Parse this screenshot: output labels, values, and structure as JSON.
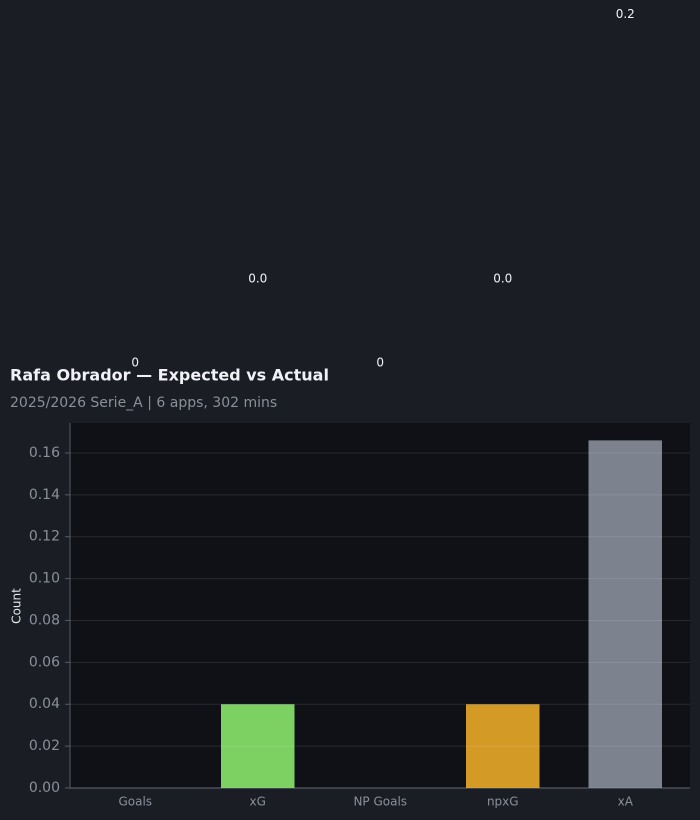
{
  "chart_data": {
    "type": "bar",
    "title": "Rafa Obrador — Expected vs Actual",
    "subtitle": "2025/2026 Serie_A | 6 apps, 302 mins",
    "y_label": "Count",
    "categories": [
      "Goals",
      "xG",
      "NP Goals",
      "npxG",
      "xA"
    ],
    "values": [
      0,
      0.04,
      0,
      0.04,
      0.166
    ],
    "value_labels": [
      "0",
      "0.0",
      "0",
      "0.0",
      "0.2"
    ],
    "colors": [
      "#5b8def",
      "#7dd163",
      "#e05555",
      "#d49a26",
      "#7c838e"
    ],
    "ylim": [
      0,
      0.1743
    ],
    "yticks": [
      {
        "value": 0,
        "label": "0.00"
      },
      {
        "value": 0.02,
        "label": "0.02"
      },
      {
        "value": 0.04,
        "label": "0.04"
      },
      {
        "value": 0.06,
        "label": "0.06"
      },
      {
        "value": 0.08,
        "label": "0.08"
      },
      {
        "value": 0.1,
        "label": "0.10"
      },
      {
        "value": 0.12,
        "label": "0.12"
      },
      {
        "value": 0.14,
        "label": "0.14"
      },
      {
        "value": 0.16,
        "label": "0.16"
      }
    ],
    "grid": true
  }
}
